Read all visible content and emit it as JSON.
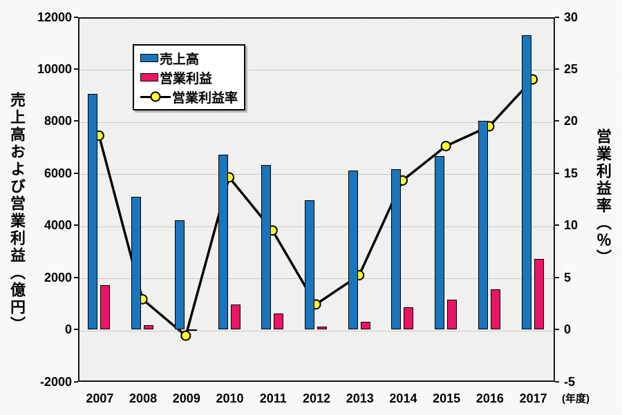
{
  "chart_data": {
    "type": "bar",
    "subtype": "bar-line-combo",
    "categories": [
      "2007",
      "2008",
      "2009",
      "2010",
      "2011",
      "2012",
      "2013",
      "2014",
      "2015",
      "2016",
      "2017"
    ],
    "x_axis_unit": "(年度)",
    "left_axis": {
      "title": "売上高および営業利益（億円）",
      "min": -2000,
      "max": 12000,
      "tick_step": 2000,
      "ticks": [
        12000,
        10000,
        8000,
        6000,
        4000,
        2000,
        0,
        -2000
      ]
    },
    "right_axis": {
      "title": "営業利益率（％）",
      "min": -5,
      "max": 30,
      "tick_step": 5,
      "ticks": [
        30,
        25,
        20,
        15,
        10,
        5,
        0,
        -5
      ]
    },
    "series": [
      {
        "name": "売上高",
        "type": "bar",
        "axis": "left",
        "color": "#1B75BC",
        "values": [
          9050,
          5100,
          4200,
          6700,
          6300,
          4950,
          6100,
          6150,
          6650,
          8000,
          11300
        ]
      },
      {
        "name": "営業利益",
        "type": "bar",
        "axis": "left",
        "color": "#EC1464",
        "values": [
          1700,
          150,
          -30,
          950,
          600,
          120,
          300,
          850,
          1150,
          1550,
          2700
        ]
      },
      {
        "name": "営業利益率",
        "type": "line",
        "axis": "right",
        "color": "#000000",
        "marker_color": "#FFFF33",
        "values": [
          18.6,
          2.9,
          -0.6,
          14.6,
          9.5,
          2.4,
          5.2,
          14.3,
          17.6,
          19.5,
          24.0
        ]
      }
    ],
    "grid": true,
    "legend_position": "inside-top-left",
    "plot_background": "#F0F0EE",
    "grid_color": "#C9C9C7"
  }
}
